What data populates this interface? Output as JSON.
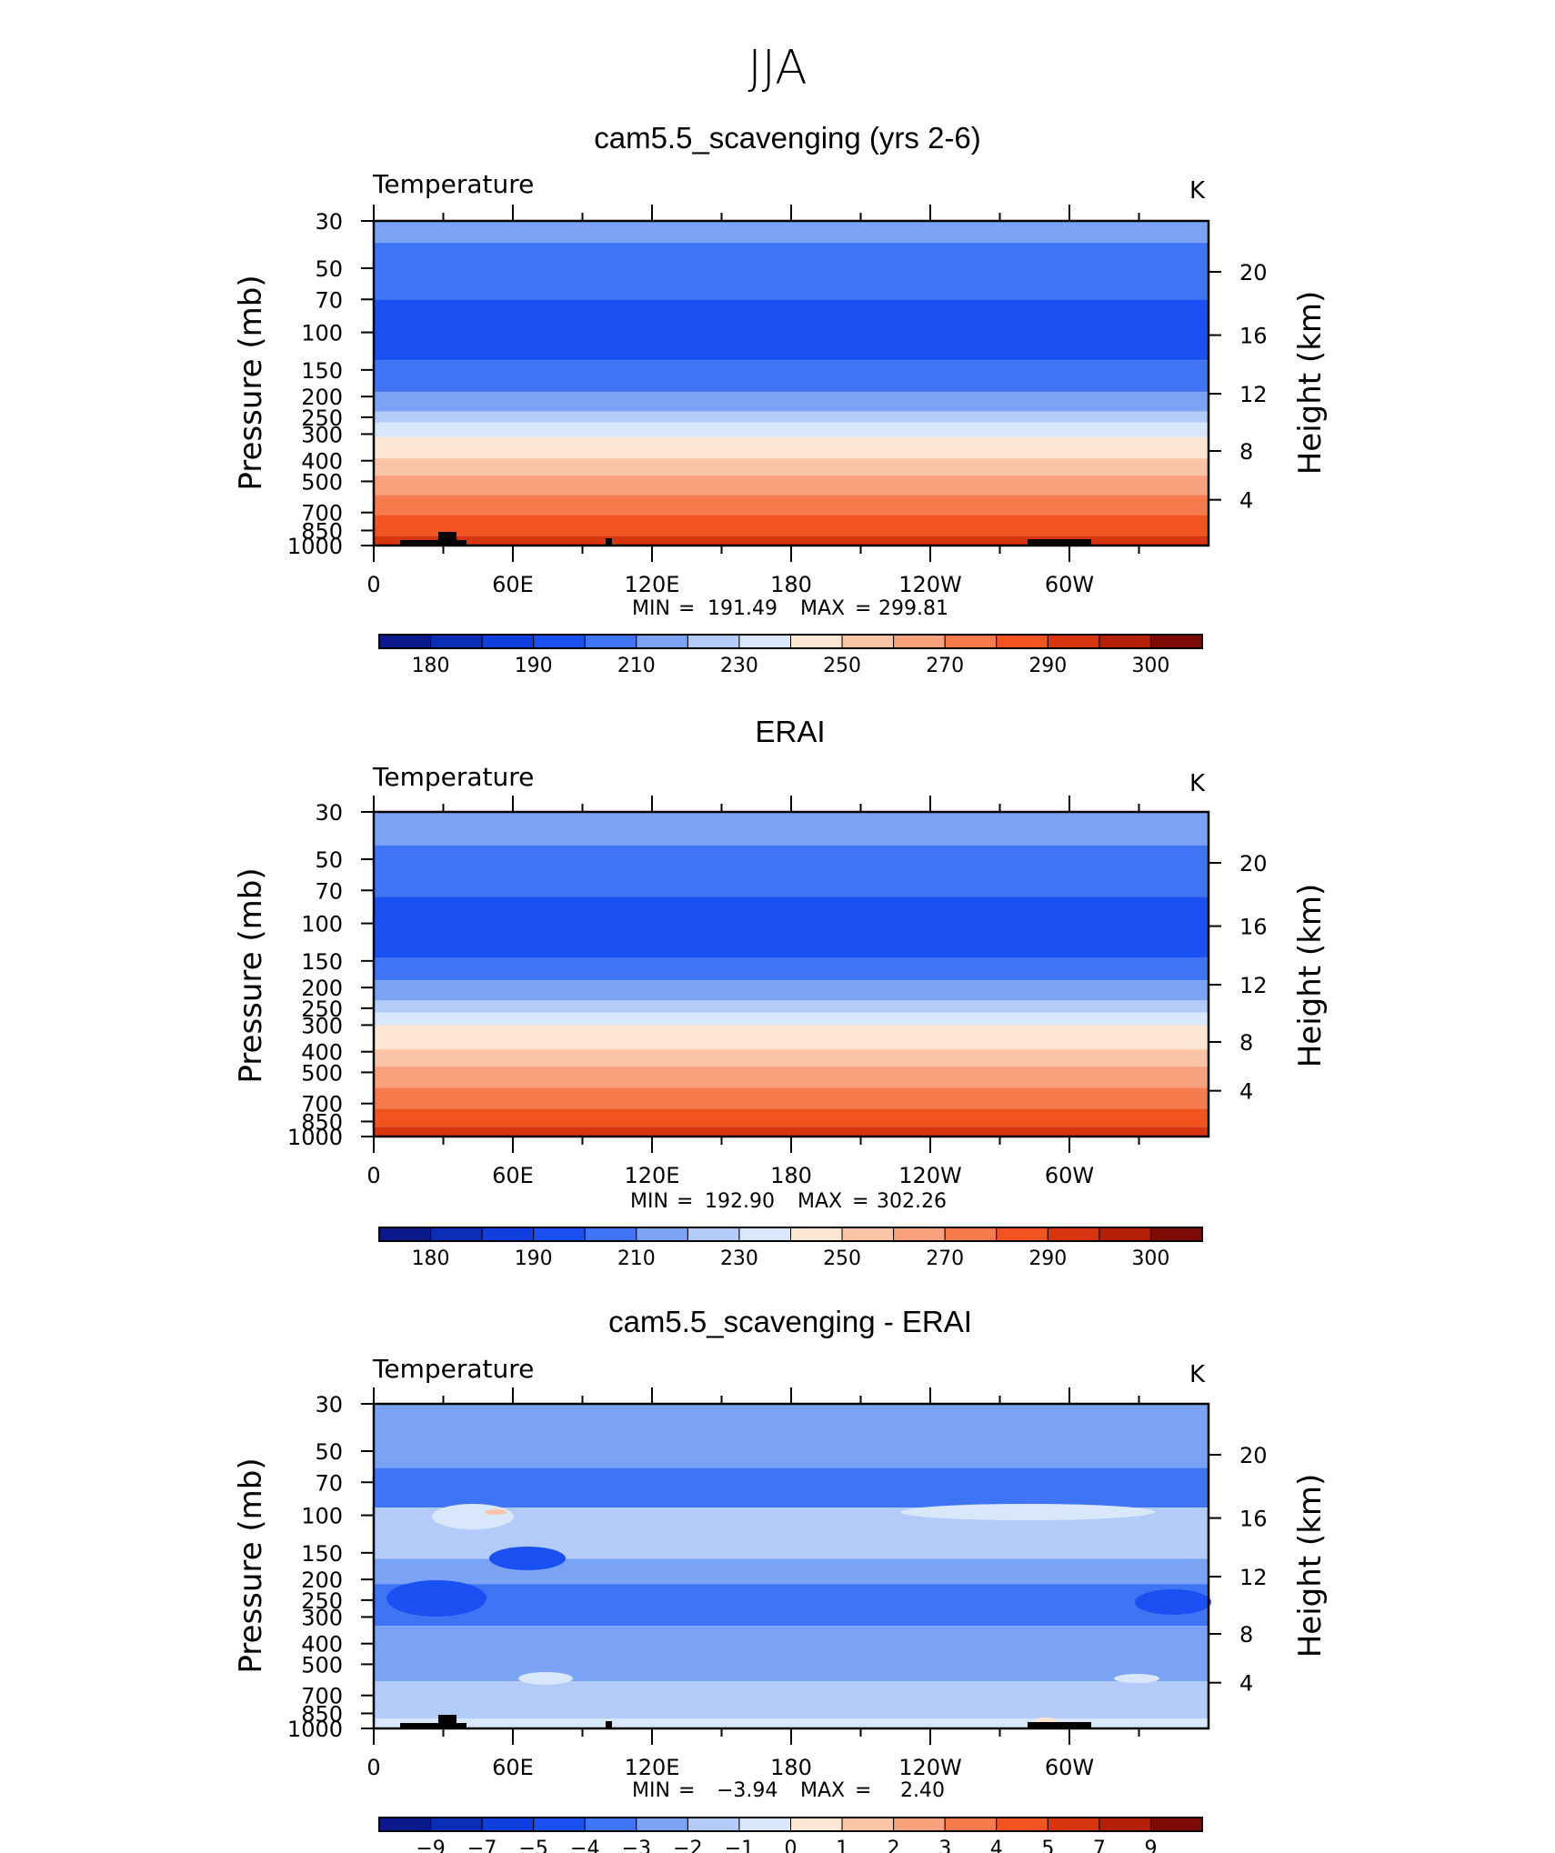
{
  "title": "JJA",
  "colors": {
    "full_palette": [
      "#0a1a8c",
      "#0b2eb4",
      "#0f3fdc",
      "#1a50f2",
      "#3f74f5",
      "#7aa3f6",
      "#b3cbf8",
      "#d9e7fb",
      "#fde7d3",
      "#fbc4a6",
      "#f7a07c",
      "#f57a4c",
      "#f2541f",
      "#d93410",
      "#b2200a",
      "#7e0a05"
    ]
  },
  "chart_data": [
    {
      "type": "heatmap",
      "panel_title": "cam5.5_scavenging (yrs 2-6)",
      "variable": "Temperature",
      "units": "K",
      "ylabel": "Pressure (mb)",
      "ylabel_right": "Height (km)",
      "x_ticks": [
        "0",
        "60E",
        "120E",
        "180",
        "120W",
        "60W"
      ],
      "y_ticks": [
        "30",
        "50",
        "70",
        "100",
        "150",
        "200",
        "250",
        "300",
        "400",
        "500",
        "700",
        "850",
        "1000"
      ],
      "y_ticks_right": [
        "20",
        "16",
        "12",
        "8",
        "4"
      ],
      "stats": {
        "min_label": "MIN",
        "min": "191.49",
        "max_label": "MAX",
        "max": "299.81"
      },
      "colorbar_labels": [
        "180",
        "190",
        "210",
        "230",
        "250",
        "270",
        "290",
        "300"
      ],
      "level_bands": [
        {
          "from": 30,
          "to": 38,
          "color": "#7aa3f6"
        },
        {
          "from": 38,
          "to": 70,
          "color": "#3f74f5"
        },
        {
          "from": 70,
          "to": 135,
          "color": "#1a50f2"
        },
        {
          "from": 135,
          "to": 190,
          "color": "#3f74f5"
        },
        {
          "from": 190,
          "to": 235,
          "color": "#7aa3f6"
        },
        {
          "from": 235,
          "to": 265,
          "color": "#b3cbf8"
        },
        {
          "from": 265,
          "to": 310,
          "color": "#d9e7fb"
        },
        {
          "from": 310,
          "to": 390,
          "color": "#fde7d3"
        },
        {
          "from": 390,
          "to": 470,
          "color": "#fbc4a6"
        },
        {
          "from": 470,
          "to": 580,
          "color": "#f7a07c"
        },
        {
          "from": 580,
          "to": 720,
          "color": "#f57a4c"
        },
        {
          "from": 720,
          "to": 900,
          "color": "#f2541f"
        },
        {
          "from": 900,
          "to": 1000,
          "color": "#d93410"
        }
      ]
    },
    {
      "type": "heatmap",
      "panel_title": "ERAI",
      "variable": "Temperature",
      "units": "K",
      "ylabel": "Pressure (mb)",
      "ylabel_right": "Height (km)",
      "x_ticks": [
        "0",
        "60E",
        "120E",
        "180",
        "120W",
        "60W"
      ],
      "y_ticks": [
        "30",
        "50",
        "70",
        "100",
        "150",
        "200",
        "250",
        "300",
        "400",
        "500",
        "700",
        "850",
        "1000"
      ],
      "y_ticks_right": [
        "20",
        "16",
        "12",
        "8",
        "4"
      ],
      "stats": {
        "min_label": "MIN",
        "min": "192.90",
        "max_label": "MAX",
        "max": "302.26"
      },
      "colorbar_labels": [
        "180",
        "190",
        "210",
        "230",
        "250",
        "270",
        "290",
        "300"
      ],
      "level_bands": [
        {
          "from": 30,
          "to": 43,
          "color": "#7aa3f6"
        },
        {
          "from": 43,
          "to": 75,
          "color": "#3f74f5"
        },
        {
          "from": 75,
          "to": 145,
          "color": "#1a50f2"
        },
        {
          "from": 145,
          "to": 185,
          "color": "#3f74f5"
        },
        {
          "from": 185,
          "to": 230,
          "color": "#7aa3f6"
        },
        {
          "from": 230,
          "to": 262,
          "color": "#b3cbf8"
        },
        {
          "from": 262,
          "to": 300,
          "color": "#d9e7fb"
        },
        {
          "from": 300,
          "to": 390,
          "color": "#fde7d3"
        },
        {
          "from": 390,
          "to": 470,
          "color": "#fbc4a6"
        },
        {
          "from": 470,
          "to": 590,
          "color": "#f7a07c"
        },
        {
          "from": 590,
          "to": 740,
          "color": "#f57a4c"
        },
        {
          "from": 740,
          "to": 900,
          "color": "#f2541f"
        },
        {
          "from": 900,
          "to": 1000,
          "color": "#d93410"
        }
      ]
    },
    {
      "type": "heatmap",
      "panel_title": "cam5.5_scavenging - ERAI",
      "variable": "Temperature",
      "units": "K",
      "ylabel": "Pressure (mb)",
      "ylabel_right": "Height (km)",
      "x_ticks": [
        "0",
        "60E",
        "120E",
        "180",
        "120W",
        "60W"
      ],
      "y_ticks": [
        "30",
        "50",
        "70",
        "100",
        "150",
        "200",
        "250",
        "300",
        "400",
        "500",
        "700",
        "850",
        "1000"
      ],
      "y_ticks_right": [
        "20",
        "16",
        "12",
        "8",
        "4"
      ],
      "stats": {
        "min_label": "MIN",
        "min": "−3.94",
        "max_label": "MAX",
        "max": "2.40"
      },
      "colorbar_labels": [
        "−9",
        "−7",
        "−5",
        "−4",
        "−3",
        "−2",
        "−1",
        "0",
        "1",
        "2",
        "3",
        "4",
        "5",
        "7",
        "9"
      ],
      "level_bands": [
        {
          "from": 30,
          "to": 60,
          "color": "#7aa3f6"
        },
        {
          "from": 60,
          "to": 92,
          "color": "#3f74f5"
        },
        {
          "from": 92,
          "to": 160,
          "color": "#b3cbf8"
        },
        {
          "from": 160,
          "to": 210,
          "color": "#7aa3f6"
        },
        {
          "from": 210,
          "to": 330,
          "color": "#3f74f5"
        },
        {
          "from": 330,
          "to": 600,
          "color": "#7aa3f6"
        },
        {
          "from": 600,
          "to": 900,
          "color": "#b3cbf8"
        },
        {
          "from": 900,
          "to": 1000,
          "color": "#d9e7fb"
        }
      ]
    }
  ]
}
